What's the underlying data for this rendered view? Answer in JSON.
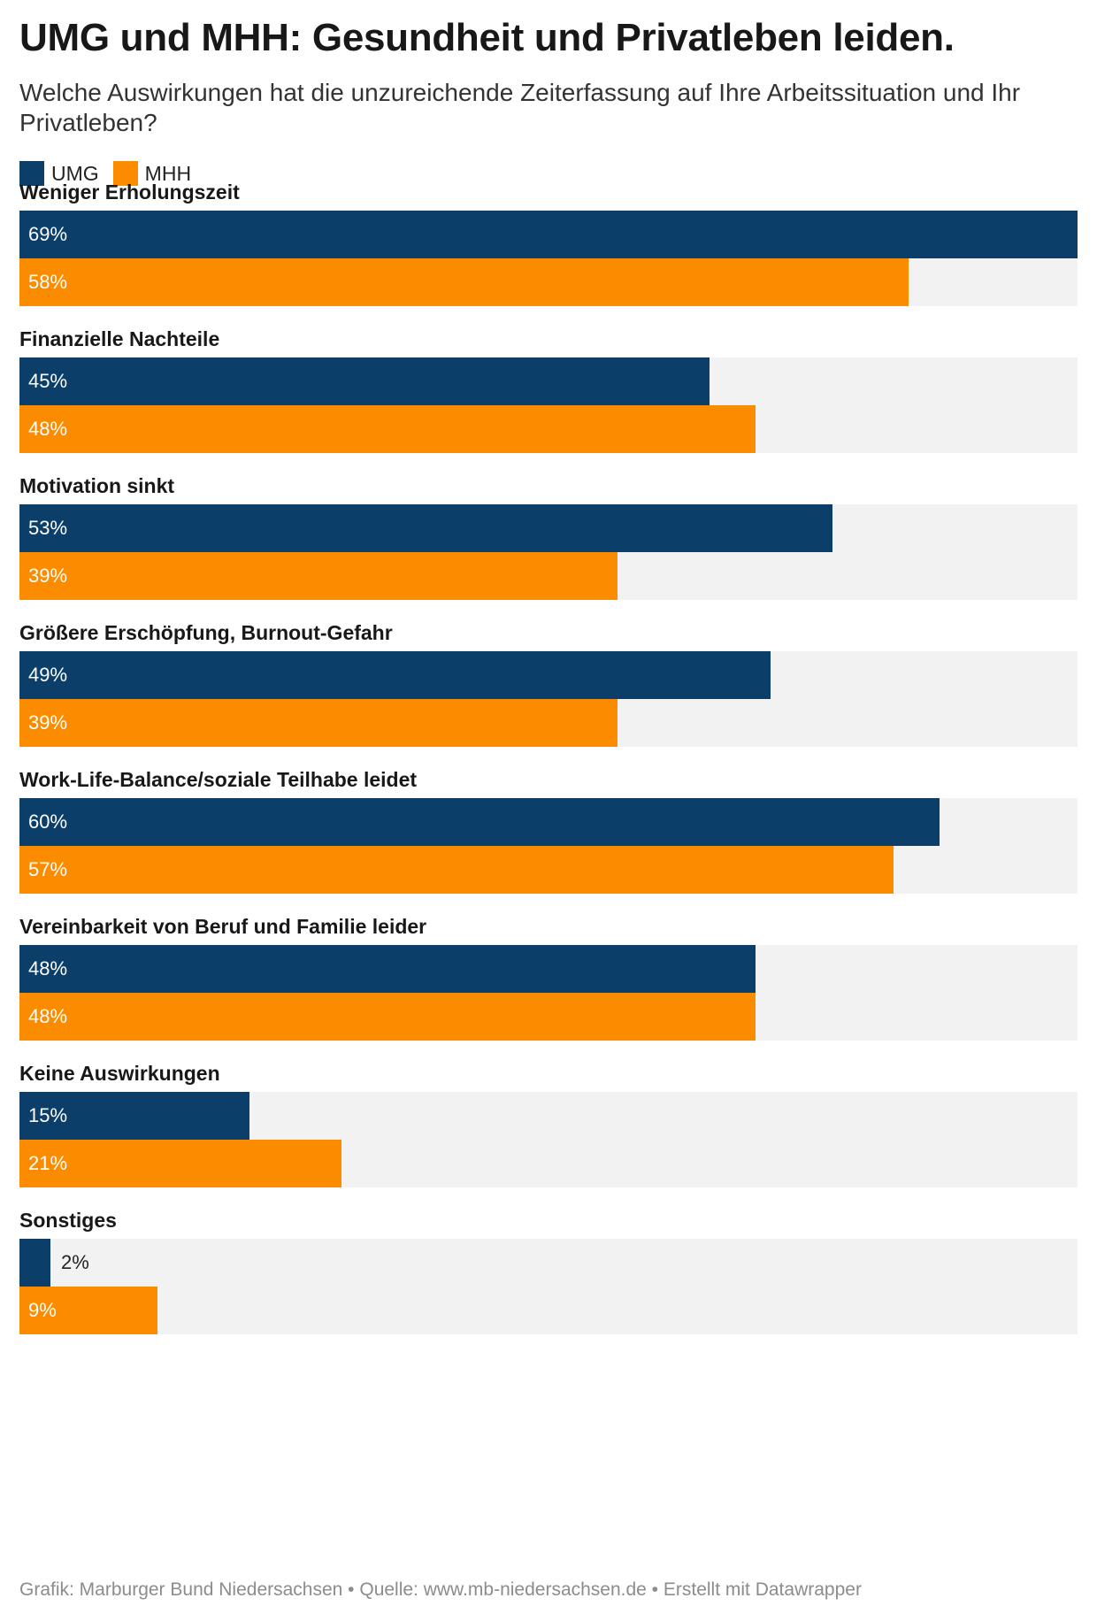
{
  "chart_data": {
    "type": "bar",
    "orientation": "horizontal-grouped",
    "title": "UMG und MHH: Gesundheit und Privatleben leiden.",
    "subtitle": "Welche Auswirkungen hat die unzureichende Zeiterfassung auf Ihre Arbeitssituation und Ihr Privatleben?",
    "unit": "%",
    "xlim": [
      0,
      69
    ],
    "legend_position": "top-left",
    "categories": [
      "Weniger Erholungszeit",
      "Finanzielle Nachteile",
      "Motivation sinkt",
      "Größere Erschöpfung, Burnout-Gefahr",
      "Work-Life-Balance/soziale Teilhabe leidet",
      "Vereinbarkeit von Beruf und Familie leider",
      "Keine Auswirkungen",
      "Sonstiges"
    ],
    "series": [
      {
        "name": "UMG",
        "color": "#0b3f69",
        "values": [
          69,
          45,
          53,
          49,
          60,
          48,
          15,
          2
        ]
      },
      {
        "name": "MHH",
        "color": "#fb8c00",
        "values": [
          58,
          48,
          39,
          39,
          57,
          48,
          21,
          9
        ]
      }
    ],
    "value_label_colors": {
      "inside": "#ffffff",
      "outside": "#222222"
    },
    "background_color": "#f2f2f2",
    "footer": "Grafik: Marburger Bund Niedersachsen • Quelle: www.mb-niedersachsen.de • Erstellt mit Datawrapper"
  }
}
